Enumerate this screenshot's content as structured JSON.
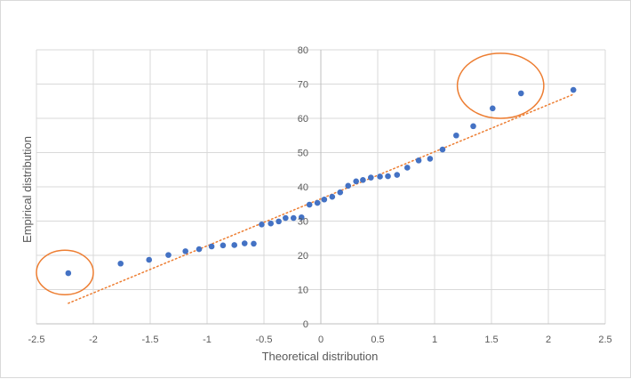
{
  "chart_data": {
    "type": "scatter",
    "xlabel": "Theoretical distribution",
    "ylabel": "Empirical distribution",
    "xlim": [
      -2.5,
      2.5
    ],
    "ylim": [
      0,
      80
    ],
    "xticks": [
      -2.5,
      -2,
      -1.5,
      -1,
      -0.5,
      0,
      0.5,
      1,
      1.5,
      2,
      2.5
    ],
    "yticks": [
      0,
      10,
      20,
      30,
      40,
      50,
      60,
      70,
      80
    ],
    "xtick_labels": [
      "-2.5",
      "-2",
      "-1.5",
      "-1",
      "-0.5",
      "0",
      "0.5",
      "1",
      "1.5",
      "2",
      "2.5"
    ],
    "ytick_labels": [
      "0",
      "10",
      "20",
      "30",
      "40",
      "50",
      "60",
      "70",
      "80"
    ],
    "grid": "vertical and horizontal",
    "legend": "none",
    "colors": {
      "points": "#4472c4",
      "trendline": "#ed7d31",
      "highlight": "#ed7d31",
      "grid": "#d9d9d9"
    },
    "series": [
      {
        "x": [
          -2.22,
          -1.76,
          -1.51,
          -1.34,
          -1.19,
          -1.07,
          -0.96,
          -0.86,
          -0.76,
          -0.67,
          -0.59,
          -0.52,
          -0.44,
          -0.37,
          -0.31,
          -0.24,
          -0.17,
          -0.1,
          -0.03,
          0.03,
          0.1,
          0.17,
          0.24,
          0.31,
          0.37,
          0.44,
          0.52,
          0.59,
          0.67,
          0.76,
          0.86,
          0.96,
          1.07,
          1.19,
          1.34,
          1.51,
          1.76,
          2.22
        ],
        "y": [
          14.8,
          17.6,
          18.7,
          20.1,
          21.2,
          21.8,
          22.6,
          22.9,
          23.0,
          23.5,
          23.4,
          29.0,
          29.3,
          29.9,
          30.9,
          30.9,
          31.1,
          34.8,
          35.3,
          36.3,
          37.1,
          38.4,
          40.3,
          41.6,
          42.0,
          42.7,
          43.0,
          43.1,
          43.5,
          45.6,
          47.7,
          48.2,
          50.9,
          55.0,
          57.7,
          62.9,
          67.3,
          68.3
        ]
      }
    ],
    "trendline": {
      "style": "dotted",
      "from": [
        -2.22,
        6.0
      ],
      "to": [
        2.22,
        67.0
      ]
    },
    "highlights": [
      {
        "cx": -2.25,
        "cy": 15.0,
        "rx": 0.25,
        "ry": 6.5
      },
      {
        "cx": 1.58,
        "cy": 69.5,
        "rx": 0.38,
        "ry": 9.5
      }
    ]
  }
}
